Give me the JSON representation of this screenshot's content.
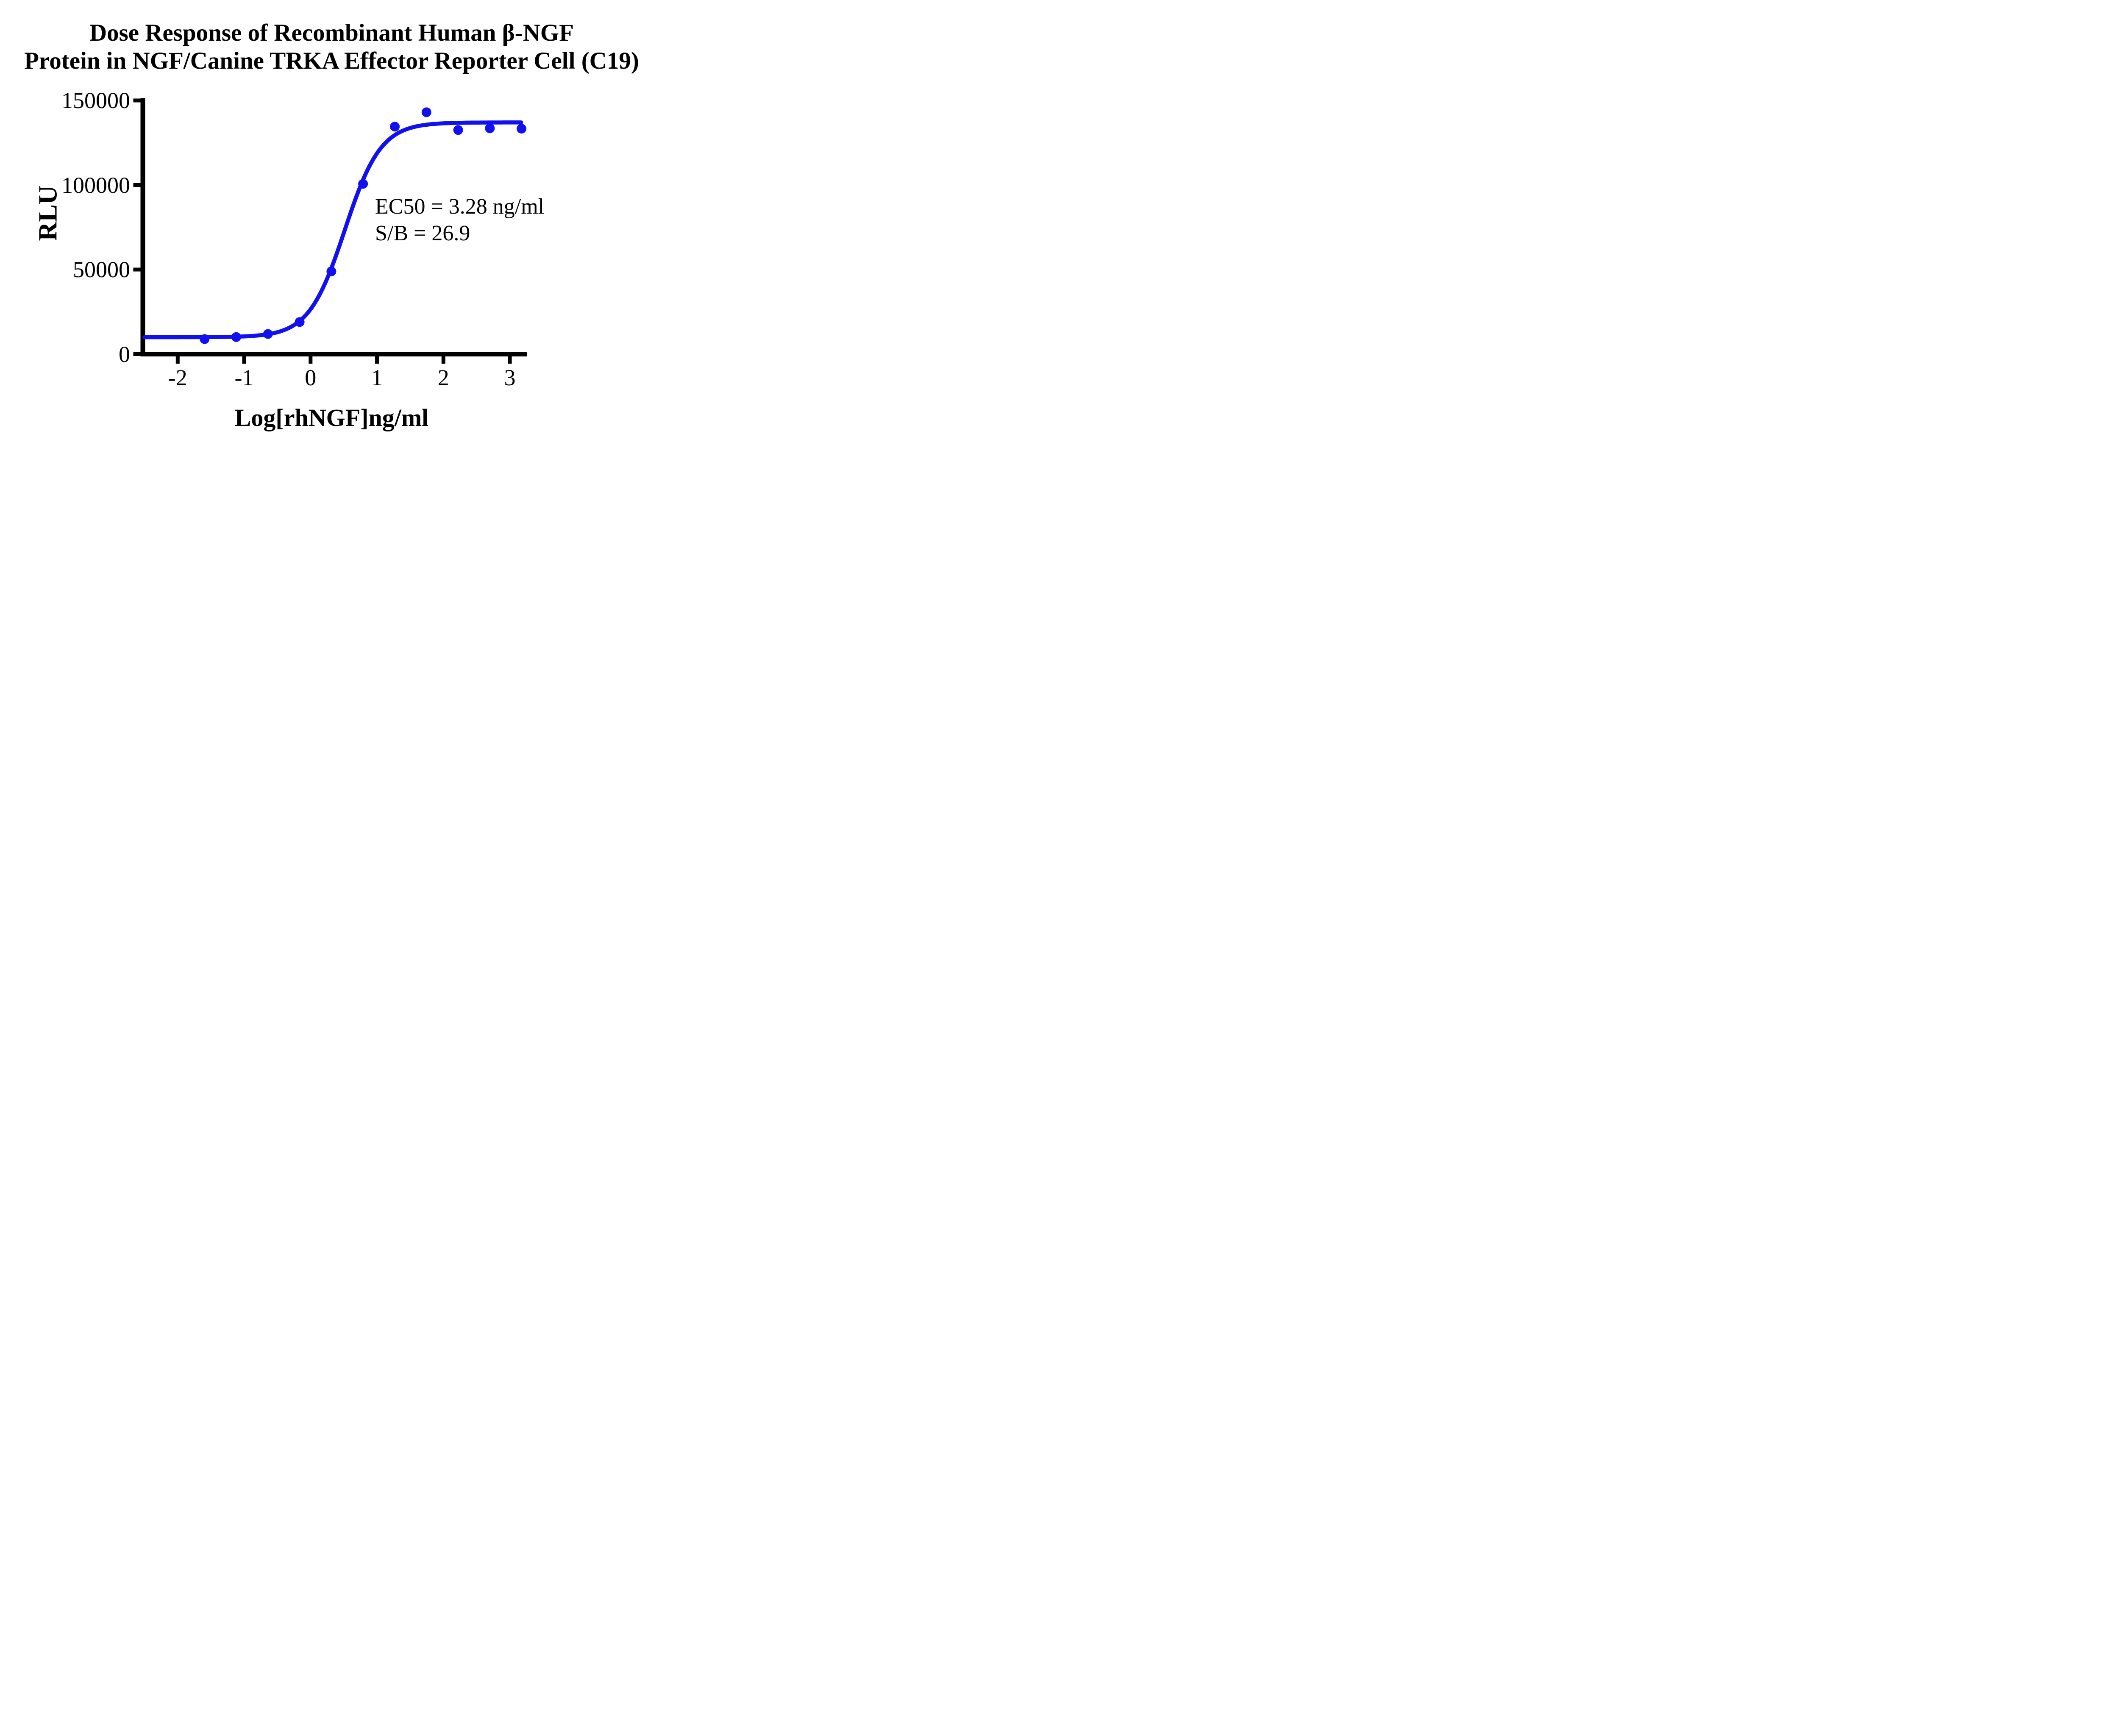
{
  "title": {
    "line1": "Dose Response of Recombinant Human β-NGF",
    "line2": "Protein in NGF/Canine TRKA Effector Reporter Cell (C19)"
  },
  "axes": {
    "x": {
      "title": "Log[rhNGF]ng/ml"
    },
    "y": {
      "title": "RLU"
    }
  },
  "annotation": {
    "line1": "EC50 = 3.28 ng/ml",
    "line2": "S/B = 26.9"
  },
  "colors": {
    "curve": "#1010F0",
    "points": "#1010F0",
    "axis": "#000000",
    "text": "#000000",
    "background": "#FFFFFF"
  },
  "chart_data": {
    "type": "scatter",
    "title": "Dose Response of Recombinant Human β-NGF Protein in NGF/Canine TRKA Effector Reporter Cell (C19)",
    "xlabel": "Log[rhNGF]ng/ml",
    "ylabel": "RLU",
    "x_ticks": [
      -2,
      -1,
      0,
      1,
      2,
      3
    ],
    "y_ticks": [
      0,
      50000,
      100000,
      150000
    ],
    "xlim": [
      -2.525,
      3.26
    ],
    "ylim": [
      0,
      150000
    ],
    "grid": false,
    "legend": "none",
    "points": {
      "log_conc": [
        -1.595,
        -1.118,
        -0.641,
        -0.164,
        0.313,
        0.79,
        1.268,
        1.745,
        2.222,
        2.699,
        3.176
      ],
      "rlu": [
        8900,
        10100,
        11900,
        19000,
        48900,
        100700,
        134500,
        143000,
        132500,
        133500,
        133300
      ]
    },
    "fit_curve": {
      "model": "4PL sigmoidal dose-response",
      "bottom": 10000,
      "top": 137000,
      "log_ec50": 0.516,
      "hill_slope": 1.6,
      "x_start": -2.5,
      "x_end": 3.19
    },
    "ec50_ng_ml": 3.28,
    "signal_to_background": 26.9
  }
}
